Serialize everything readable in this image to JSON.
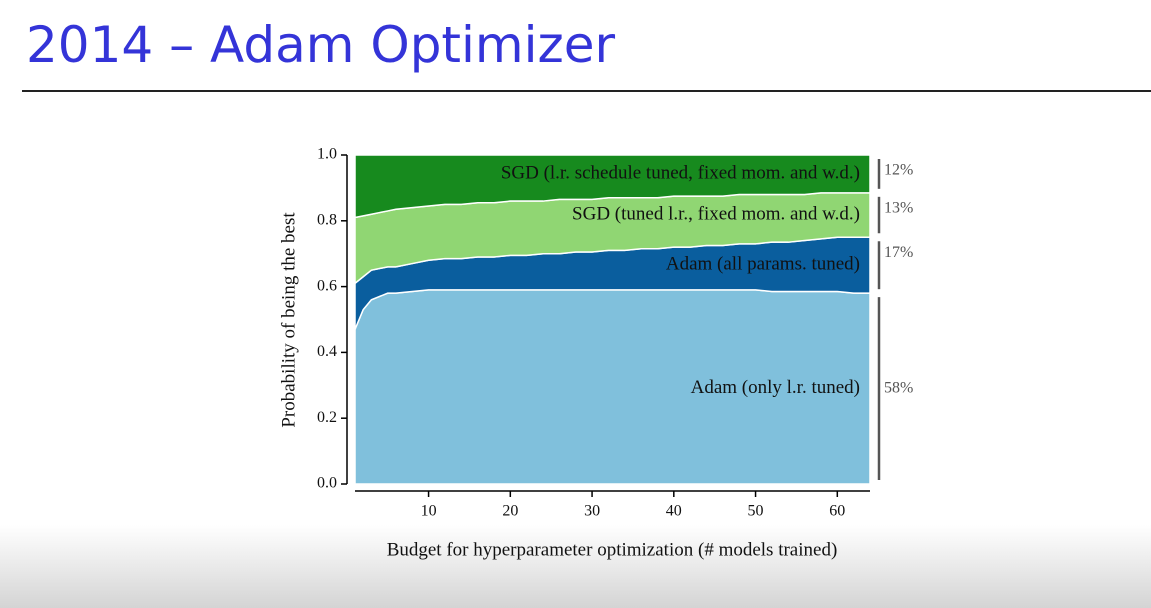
{
  "header": {
    "title": "2014 – Adam Optimizer"
  },
  "chart_data": {
    "type": "area",
    "stacked": true,
    "xlabel": "Budget for hyperparameter optimization (# models trained)",
    "ylabel": "Probability of being the best",
    "x": [
      1,
      2,
      3,
      4,
      5,
      6,
      8,
      10,
      12,
      14,
      16,
      18,
      20,
      22,
      24,
      26,
      28,
      30,
      32,
      34,
      36,
      38,
      40,
      42,
      44,
      46,
      48,
      50,
      52,
      54,
      56,
      58,
      60,
      62,
      64
    ],
    "xlim": [
      1,
      64
    ],
    "ylim": [
      0,
      1
    ],
    "xticks": [
      10,
      20,
      30,
      40,
      50,
      60
    ],
    "yticks": [
      {
        "value": 0,
        "label": "0.0"
      },
      {
        "value": 0.2,
        "label": "0.2"
      },
      {
        "value": 0.4,
        "label": "0.4"
      },
      {
        "value": 0.6,
        "label": "0.6"
      },
      {
        "value": 0.8,
        "label": "0.8"
      },
      {
        "value": 1,
        "label": "1.0"
      }
    ],
    "series": [
      {
        "name": "Adam (only l.r. tuned)",
        "color": "#80c0dc",
        "share": {
          "value": 58,
          "label": "58%"
        },
        "values": [
          0.47,
          0.53,
          0.56,
          0.57,
          0.58,
          0.58,
          0.585,
          0.59,
          0.59,
          0.59,
          0.59,
          0.59,
          0.59,
          0.59,
          0.59,
          0.59,
          0.59,
          0.59,
          0.59,
          0.59,
          0.59,
          0.59,
          0.59,
          0.59,
          0.59,
          0.59,
          0.59,
          0.59,
          0.585,
          0.585,
          0.585,
          0.585,
          0.585,
          0.58,
          0.58
        ]
      },
      {
        "name": "Adam (all params. tuned)",
        "color": "#0a5e9e",
        "share": {
          "value": 17,
          "label": "17%"
        },
        "values": [
          0.14,
          0.1,
          0.09,
          0.085,
          0.08,
          0.08,
          0.085,
          0.09,
          0.095,
          0.095,
          0.1,
          0.1,
          0.105,
          0.105,
          0.11,
          0.11,
          0.115,
          0.115,
          0.12,
          0.12,
          0.125,
          0.125,
          0.13,
          0.13,
          0.135,
          0.135,
          0.14,
          0.14,
          0.15,
          0.15,
          0.155,
          0.16,
          0.165,
          0.17,
          0.17
        ]
      },
      {
        "name": "SGD (tuned l.r., fixed mom. and w.d.)",
        "color": "#90d673",
        "share": {
          "value": 13,
          "label": "13%"
        },
        "values": [
          0.2,
          0.185,
          0.17,
          0.17,
          0.17,
          0.175,
          0.17,
          0.165,
          0.165,
          0.165,
          0.165,
          0.165,
          0.165,
          0.165,
          0.16,
          0.165,
          0.16,
          0.16,
          0.16,
          0.16,
          0.155,
          0.155,
          0.155,
          0.155,
          0.15,
          0.15,
          0.15,
          0.15,
          0.145,
          0.145,
          0.14,
          0.14,
          0.135,
          0.135,
          0.135
        ]
      },
      {
        "name": "SGD (l.r. schedule tuned, fixed mom. and w.d.)",
        "color": "#178a1e",
        "share": {
          "value": 12,
          "label": "12%"
        },
        "values": [
          0.19,
          0.185,
          0.18,
          0.175,
          0.17,
          0.165,
          0.16,
          0.155,
          0.15,
          0.15,
          0.145,
          0.145,
          0.14,
          0.14,
          0.14,
          0.135,
          0.135,
          0.135,
          0.13,
          0.13,
          0.13,
          0.13,
          0.125,
          0.125,
          0.125,
          0.125,
          0.12,
          0.12,
          0.12,
          0.12,
          0.12,
          0.115,
          0.115,
          0.115,
          0.115
        ]
      }
    ]
  }
}
